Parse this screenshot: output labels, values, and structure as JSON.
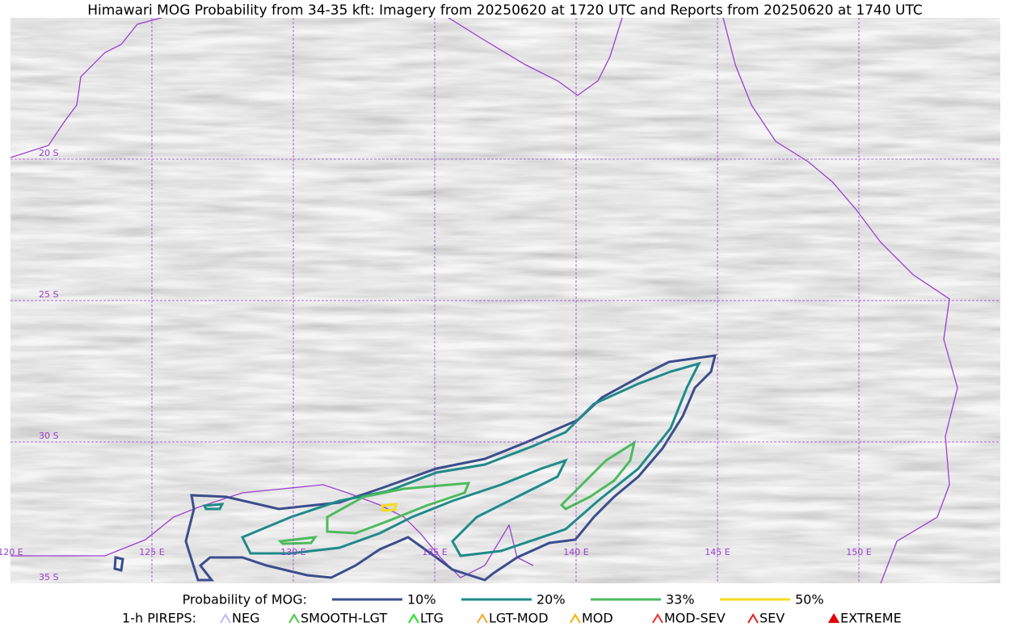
{
  "title": "Himawari MOG Probability from 34-35 kft: Imagery from 20250620 at 1720 UTC and Reports from 20250620 at 1740 UTC",
  "map": {
    "lon_labels": [
      "120 E",
      "125 E",
      "130 E",
      "135 E",
      "140 E",
      "145 E",
      "150 E"
    ],
    "lat_labels": [
      "20 S",
      "25 S",
      "30 S",
      "35 S"
    ]
  },
  "legend": {
    "probability_title": "Probability of MOG:",
    "probability_levels": [
      "10%",
      "20%",
      "33%",
      "50%"
    ],
    "pireps_title": "1-h PIREPS:",
    "pireps": [
      "NEG",
      "SMOOTH-LGT",
      "LTG",
      "LGT-MOD",
      "MOD",
      "MOD-SEV",
      "SEV",
      "EXTREME"
    ]
  }
}
